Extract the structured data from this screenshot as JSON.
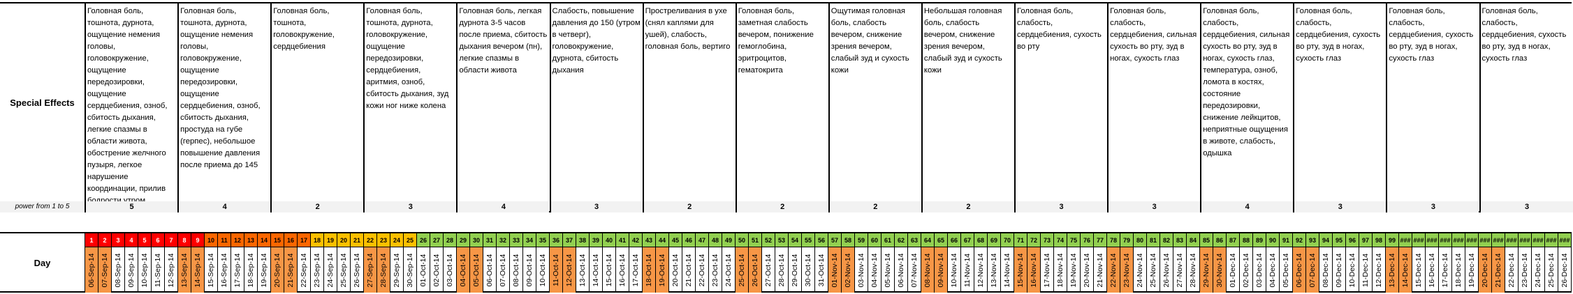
{
  "effects": {
    "row_label": "Special Effects",
    "power_label": "power from 1 to 5",
    "columns": [
      {
        "text": "Головная боль, тошнота, дурнота, ощущение немения головы, головокружение, ощущение передозировки, ощущение сердцебиения, озноб, сбитость дыхания, легкие спазмы в области живота, обострение желчного пузыря, легкое нарушение координации, прилив бодрости утром",
        "power": "5"
      },
      {
        "text": "Головная боль, тошнота, дурнота, ощущение немения головы, головокружение, ощущение передозировки, ощущение сердцебиения, озноб, сбитость дыхания, простуда на губе (герпес), небольшое повышение давления после приема до 145",
        "power": "4"
      },
      {
        "text": "Головная боль, тошнота, головокружение, сердцебиения",
        "power": "2"
      },
      {
        "text": "Головная боль, тошнота, дурнота, головокружение, ощущение передозировки, сердцебиения, аритмия, озноб, сбитость дыхания, зуд кожи ног ниже колена",
        "power": "3"
      },
      {
        "text": "Головная боль, легкая дурнота 3-5 часов после приема, сбитость дыхания вечером (пн), легкие спазмы в области живота",
        "power": "4"
      },
      {
        "text": "Слабость, повышение давления до 150 (утром в четверг), головокружение, дурнота, сбитость дыхания",
        "power": "3"
      },
      {
        "text": "Простреливания в ухе (снял каплями для ушей), слабость, головная боль, вертиго",
        "power": "2"
      },
      {
        "text": "Головная боль, заметная слабость вечером, понижение гемоглобина, эритроцитов, гематокрита",
        "power": "2"
      },
      {
        "text": "Ощутимая головная боль, слабость вечером, снижение зрения вечером, слабый зуд и сухость кожи",
        "power": "2"
      },
      {
        "text": "Небольшая головная боль, слабость вечером, снижение зрения вечером, слабый зуд и сухость кожи",
        "power": "2"
      },
      {
        "text": "Головная боль, слабость, сердцебиения, сухость во рту",
        "power": "3"
      },
      {
        "text": "Головная боль, слабость, сердцебиения, сильная сухость во рту, зуд в ногах, сухость глаз",
        "power": "3"
      },
      {
        "text": "Головная боль, слабость, сердцебиения, сильная сухость во рту, зуд в ногах, сухость глаз, температура, озноб, ломота в костях, состояние передозировки, снижение лейкцитов, неприятные ощущения в животе, слабость, одышка",
        "power": "4"
      },
      {
        "text": "Головная боль, слабость, сердцебиения, сухость во рту, зуд в ногах, сухость глаз",
        "power": "3"
      },
      {
        "text": "Головная боль, слабость, сердцебиения, сухость во рту, зуд в ногах, сухость глаз",
        "power": "3"
      },
      {
        "text": "Головная боль, слабость, сердцебиения, сухость во рту, зуд в ногах, сухость глаз",
        "power": "3"
      }
    ]
  },
  "days": {
    "row_label": "Day",
    "numbers": [
      "1",
      "2",
      "3",
      "4",
      "5",
      "6",
      "7",
      "8",
      "9",
      "10",
      "11",
      "12",
      "13",
      "14",
      "15",
      "16",
      "17",
      "18",
      "19",
      "20",
      "21",
      "22",
      "23",
      "24",
      "25",
      "26",
      "27",
      "28",
      "29",
      "30",
      "31",
      "32",
      "33",
      "34",
      "35",
      "36",
      "37",
      "38",
      "39",
      "40",
      "41",
      "42",
      "43",
      "44",
      "45",
      "46",
      "47",
      "48",
      "49",
      "50",
      "51",
      "52",
      "53",
      "54",
      "55",
      "56",
      "57",
      "58",
      "59",
      "60",
      "61",
      "62",
      "63",
      "64",
      "65",
      "66",
      "67",
      "68",
      "69",
      "70",
      "71",
      "72",
      "73",
      "74",
      "75",
      "76",
      "77",
      "78",
      "79",
      "80",
      "81",
      "82",
      "83",
      "84",
      "85",
      "86",
      "87",
      "88",
      "89",
      "90",
      "91",
      "92",
      "93",
      "94",
      "95",
      "96",
      "97",
      "98",
      "99",
      "###",
      "###",
      "###",
      "###",
      "###",
      "###",
      "###",
      "###",
      "###",
      "###",
      "###",
      "###",
      "###"
    ],
    "number_bands": [
      {
        "from": 1,
        "to": 9,
        "color": "#ff0000",
        "text_color": "#ffffff"
      },
      {
        "from": 10,
        "to": 17,
        "color": "#ff6600",
        "text_color": "#000000"
      },
      {
        "from": 18,
        "to": 25,
        "color": "#ffc000",
        "text_color": "#000000"
      },
      {
        "from": 26,
        "to": 112,
        "color": "#92d050",
        "text_color": "#000000"
      }
    ],
    "dates": [
      "06-Sep-14",
      "07-Sep-14",
      "08-Sep-14",
      "09-Sep-14",
      "10-Sep-14",
      "11-Sep-14",
      "12-Sep-14",
      "13-Sep-14",
      "14-Sep-14",
      "15-Sep-14",
      "16-Sep-14",
      "17-Sep-14",
      "18-Sep-14",
      "19-Sep-14",
      "20-Sep-14",
      "21-Sep-14",
      "22-Sep-14",
      "23-Sep-14",
      "24-Sep-14",
      "25-Sep-14",
      "26-Sep-14",
      "27-Sep-14",
      "28-Sep-14",
      "29-Sep-14",
      "30-Sep-14",
      "01-Oct-14",
      "02-Oct-14",
      "03-Oct-14",
      "04-Oct-14",
      "05-Oct-14",
      "06-Oct-14",
      "07-Oct-14",
      "08-Oct-14",
      "09-Oct-14",
      "10-Oct-14",
      "11-Oct-14",
      "12-Oct-14",
      "13-Oct-14",
      "14-Oct-14",
      "15-Oct-14",
      "16-Oct-14",
      "17-Oct-14",
      "18-Oct-14",
      "19-Oct-14",
      "20-Oct-14",
      "21-Oct-14",
      "22-Oct-14",
      "23-Oct-14",
      "24-Oct-14",
      "25-Oct-14",
      "26-Oct-14",
      "27-Oct-14",
      "28-Oct-14",
      "29-Oct-14",
      "30-Oct-14",
      "31-Oct-14",
      "01-Nov-14",
      "02-Nov-14",
      "03-Nov-14",
      "04-Nov-14",
      "05-Nov-14",
      "06-Nov-14",
      "07-Nov-14",
      "08-Nov-14",
      "09-Nov-14",
      "10-Nov-14",
      "11-Nov-14",
      "12-Nov-14",
      "13-Nov-14",
      "14-Nov-14",
      "15-Nov-14",
      "16-Nov-14",
      "17-Nov-14",
      "18-Nov-14",
      "19-Nov-14",
      "20-Nov-14",
      "21-Nov-14",
      "22-Nov-14",
      "23-Nov-14",
      "24-Nov-14",
      "25-Nov-14",
      "26-Nov-14",
      "27-Nov-14",
      "28-Nov-14",
      "29-Nov-14",
      "30-Nov-14",
      "01-Dec-14",
      "02-Dec-14",
      "03-Dec-14",
      "04-Dec-14",
      "05-Dec-14",
      "06-Dec-14",
      "07-Dec-14",
      "08-Dec-14",
      "09-Dec-14",
      "10-Dec-14",
      "11-Dec-14",
      "12-Dec-14",
      "13-Dec-14",
      "14-Dec-14",
      "15-Dec-14",
      "16-Dec-14",
      "17-Dec-14",
      "18-Dec-14",
      "19-Dec-14",
      "20-Dec-14",
      "21-Dec-14",
      "22-Dec-14",
      "23-Dec-14",
      "24-Dec-14",
      "25-Dec-14",
      "26-Dec-14"
    ],
    "highlighted_dates": [
      "06-Sep-14",
      "07-Sep-14",
      "13-Sep-14",
      "14-Sep-14",
      "20-Sep-14",
      "21-Sep-14",
      "27-Sep-14",
      "28-Sep-14",
      "04-Oct-14",
      "05-Oct-14",
      "11-Oct-14",
      "12-Oct-14",
      "18-Oct-14",
      "19-Oct-14",
      "25-Oct-14",
      "26-Oct-14",
      "01-Nov-14",
      "02-Nov-14",
      "08-Nov-14",
      "09-Nov-14",
      "15-Nov-14",
      "16-Nov-14",
      "22-Nov-14",
      "23-Nov-14",
      "29-Nov-14",
      "30-Nov-14",
      "06-Dec-14",
      "07-Dec-14",
      "13-Dec-14",
      "14-Dec-14",
      "20-Dec-14",
      "21-Dec-14"
    ],
    "highlight_color": "#f79646"
  }
}
